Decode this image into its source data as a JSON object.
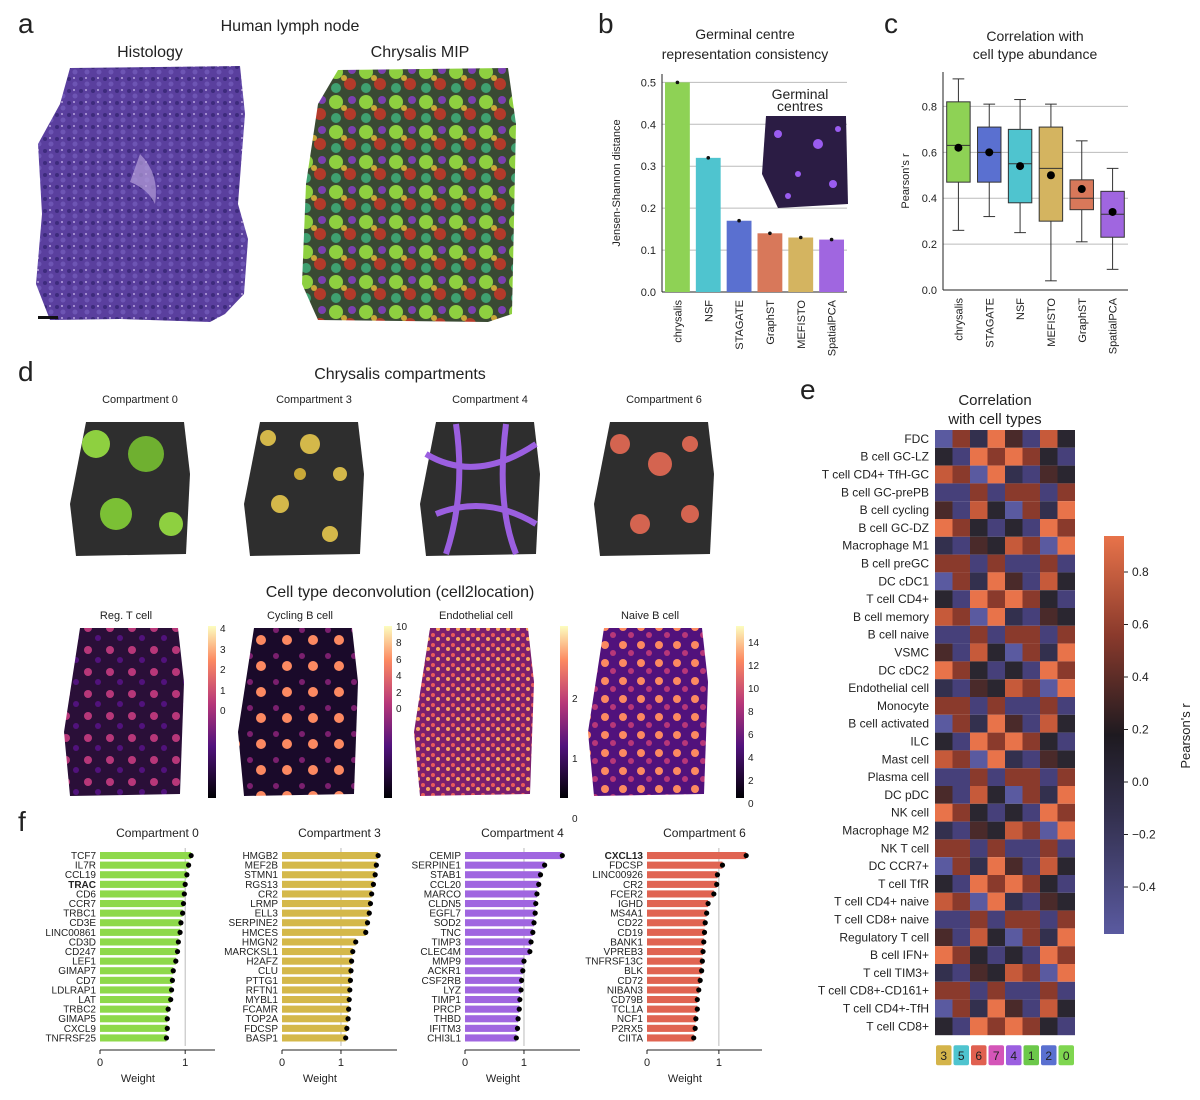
{
  "panels": {
    "a": "a",
    "b": "b",
    "c": "c",
    "d": "d",
    "e": "e",
    "f": "f"
  },
  "a": {
    "title": "Human lymph node",
    "left": "Histology",
    "right": "Chrysalis MIP"
  },
  "b": {
    "title1": "Germinal centre",
    "title2": "representation consistency",
    "ylabel": "Jensen-Shannon distance",
    "inset1": "Germinal",
    "inset2": "centres"
  },
  "c": {
    "title1": "Correlation with",
    "title2": "cell type abundance",
    "ylabel": "Pearson's r"
  },
  "d": {
    "title": "Chrysalis compartments",
    "comps": [
      "Compartment 0",
      "Compartment 3",
      "Compartment 4",
      "Compartment 6"
    ],
    "decon_title": "Cell type deconvolution (cell2location)",
    "decon": [
      "Reg. T cell",
      "Cycling B cell",
      "Endothelial cell",
      "Naive B cell"
    ]
  },
  "e": {
    "title1": "Correlation",
    "title2": "with cell types",
    "cbar_label": "Pearson's r",
    "rows": [
      "FDC",
      "B cell GC-LZ",
      "T cell CD4+ TfH-GC",
      "B cell GC-prePB",
      "B cell cycling",
      "B cell GC-DZ",
      "Macrophage M1",
      "B cell preGC",
      "DC cDC1",
      "T cell CD4+",
      "B cell memory",
      "B cell naive",
      "VSMC",
      "DC cDC2",
      "Endothelial cell",
      "Monocyte",
      "B cell activated",
      "ILC",
      "Mast cell",
      "Plasma cell",
      "DC pDC",
      "NK cell",
      "Macrophage M2",
      "NK T cell",
      "DC CCR7+",
      "T cell TfR",
      "T cell CD4+ naive",
      "T cell CD8+ naive",
      "Regulatory T cell",
      "B cell IFN+",
      "T cell TIM3+",
      "T cell CD8+-CD161+",
      "T cell CD4+-TfH",
      "T cell CD8+"
    ],
    "cols": [
      "3",
      "5",
      "6",
      "7",
      "4",
      "1",
      "2",
      "0"
    ],
    "colcolors": [
      "#d4b44a",
      "#4fc4cf",
      "#e06050",
      "#d455b8",
      "#9b5fe0",
      "#6cc84a",
      "#5a70d0",
      "#7fd650"
    ],
    "cbar_ticks": [
      "0.8",
      "0.6",
      "0.4",
      "0.2",
      "0.0",
      "−0.2",
      "−0.4"
    ]
  },
  "f": {
    "xlabel": "Weight",
    "groups": [
      {
        "title": "Compartment 0",
        "color": "#8ed94a",
        "genes": [
          "TCF7",
          "IL7R",
          "CCL19",
          "TRAC",
          "CD6",
          "CCR7",
          "TRBC1",
          "CD3E",
          "LINC00861",
          "CD3D",
          "CD247",
          "LEF1",
          "GIMAP7",
          "CD7",
          "LDLRAP1",
          "LAT",
          "TRBC2",
          "GIMAP5",
          "CXCL9",
          "TNFRSF25"
        ],
        "values": [
          1.07,
          1.04,
          1.02,
          1.0,
          0.99,
          0.98,
          0.97,
          0.95,
          0.94,
          0.92,
          0.91,
          0.89,
          0.86,
          0.85,
          0.84,
          0.83,
          0.8,
          0.79,
          0.79,
          0.78
        ],
        "bold": [
          3
        ],
        "ticks": [
          "0",
          "1"
        ],
        "max": 1.35
      },
      {
        "title": "Compartment 3",
        "color": "#d4b84a",
        "genes": [
          "HMGB2",
          "MEF2B",
          "STMN1",
          "RGS13",
          "CR2",
          "LRMP",
          "ELL3",
          "SERPINE2",
          "HMCES",
          "HMGN2",
          "MARCKSL1",
          "H2AFZ",
          "CLU",
          "PTTG1",
          "RFTN1",
          "MYBL1",
          "FCAMR",
          "TOP2A",
          "FDCSP",
          "BASP1"
        ],
        "values": [
          1.63,
          1.6,
          1.58,
          1.55,
          1.52,
          1.5,
          1.48,
          1.45,
          1.42,
          1.25,
          1.2,
          1.18,
          1.17,
          1.16,
          1.15,
          1.14,
          1.13,
          1.12,
          1.1,
          1.08
        ],
        "bold": [],
        "ticks": [
          "0",
          "1"
        ],
        "max": 1.95
      },
      {
        "title": "Compartment 4",
        "color": "#a066e0",
        "genes": [
          "CEMIP",
          "SERPINE1",
          "STAB1",
          "CCL20",
          "MARCO",
          "CLDN5",
          "EGFL7",
          "SOD2",
          "TNC",
          "TIMP3",
          "CLEC4M",
          "MMP9",
          "ACKR1",
          "CSF2RB",
          "LYZ",
          "TIMP1",
          "PRCP",
          "THBD",
          "IFITM3",
          "CHI3L1"
        ],
        "values": [
          1.65,
          1.35,
          1.28,
          1.25,
          1.22,
          1.2,
          1.19,
          1.17,
          1.15,
          1.12,
          1.1,
          1.0,
          0.98,
          0.96,
          0.95,
          0.93,
          0.92,
          0.9,
          0.89,
          0.87
        ],
        "bold": [],
        "ticks": [
          "0",
          "1"
        ],
        "max": 1.95
      },
      {
        "title": "Compartment 6",
        "color": "#e06452",
        "genes": [
          "CXCL13",
          "FDCSP",
          "LINC00926",
          "CR2",
          "FCER2",
          "IGHD",
          "MS4A1",
          "CD22",
          "CD19",
          "BANK1",
          "VPREB3",
          "TNFRSF13C",
          "BLK",
          "CD72",
          "NIBAN3",
          "CD79B",
          "TCL1A",
          "NCF1",
          "P2RX5",
          "CIITA"
        ],
        "values": [
          1.38,
          1.05,
          0.98,
          0.97,
          0.93,
          0.85,
          0.83,
          0.81,
          0.8,
          0.79,
          0.78,
          0.77,
          0.76,
          0.74,
          0.72,
          0.7,
          0.7,
          0.68,
          0.67,
          0.65
        ],
        "bold": [
          0
        ],
        "ticks": [
          "0",
          "1"
        ],
        "max": 1.6
      }
    ]
  },
  "chart_data": [
    {
      "type": "bar",
      "title": "Germinal centre representation consistency",
      "ylabel": "Jensen-Shannon distance",
      "categories": [
        "chrysalis",
        "NSF",
        "STAGATE",
        "GraphST",
        "MEFISTO",
        "SpatialPCA"
      ],
      "values": [
        0.5,
        0.32,
        0.17,
        0.14,
        0.13,
        0.125
      ],
      "colors": [
        "#8ed255",
        "#4fc4cf",
        "#5a70d0",
        "#d8785a",
        "#d4b460",
        "#a066e0"
      ],
      "ylim": [
        0,
        0.52
      ],
      "yticks": [
        "0.0",
        "0.1",
        "0.2",
        "0.3",
        "0.4",
        "0.5"
      ]
    },
    {
      "type": "box",
      "title": "Correlation with cell type abundance",
      "ylabel": "Pearson's r",
      "categories": [
        "chrysalis",
        "STAGATE",
        "NSF",
        "MEFISTO",
        "GraphST",
        "SpatialPCA"
      ],
      "colors": [
        "#8ed255",
        "#5a70d0",
        "#4fc4cf",
        "#d4b460",
        "#d8785a",
        "#a066e0"
      ],
      "q1": [
        0.47,
        0.47,
        0.38,
        0.3,
        0.35,
        0.23
      ],
      "median": [
        0.63,
        0.6,
        0.55,
        0.53,
        0.4,
        0.33
      ],
      "q3": [
        0.82,
        0.71,
        0.7,
        0.71,
        0.48,
        0.43
      ],
      "whisker_low": [
        0.26,
        0.32,
        0.25,
        0.04,
        0.21,
        0.09
      ],
      "whisker_high": [
        0.92,
        0.81,
        0.83,
        0.81,
        0.65,
        0.53
      ],
      "mean": [
        0.62,
        0.6,
        0.54,
        0.5,
        0.44,
        0.34
      ],
      "ylim": [
        0,
        0.95
      ],
      "yticks": [
        "0.0",
        "0.2",
        "0.4",
        "0.6",
        "0.8"
      ]
    }
  ]
}
